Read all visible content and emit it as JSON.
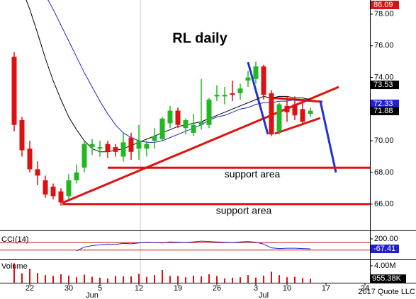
{
  "chart_data": {
    "type": "candlestick",
    "title": "RL daily",
    "categories": [
      null,
      null,
      "22",
      null,
      null,
      null,
      null,
      "30",
      null,
      null,
      null,
      "5",
      null,
      null,
      null,
      null,
      "12",
      null,
      null,
      null,
      null,
      "19",
      null,
      null,
      null,
      null,
      "26",
      null,
      null,
      null,
      null,
      "3",
      null,
      null,
      null,
      "10",
      null,
      null,
      null,
      null,
      "17",
      null,
      null,
      null,
      null,
      "24"
    ],
    "month_labels": [
      {
        "label": "Jun",
        "at": 10
      },
      {
        "label": "Jul",
        "at": 32
      }
    ],
    "open": [
      75.3,
      71.3,
      69.5,
      68.2,
      67.5,
      67.1,
      66.8,
      66.5,
      67.5,
      68.3,
      69.6,
      69.5,
      69.8,
      69.6,
      69.0,
      70.2,
      69.5,
      69.5,
      70.0,
      70.1,
      71.1,
      71.9,
      70.8,
      70.5,
      71.0,
      71.0,
      72.8,
      72.8,
      73.0,
      73.0,
      73.8,
      73.9,
      74.7,
      73.0,
      70.6,
      72.2,
      72.3,
      72.0,
      71.7,
      null,
      null,
      null,
      null,
      null,
      null,
      null
    ],
    "high": [
      75.6,
      71.5,
      70.0,
      68.7,
      67.8,
      67.3,
      67.0,
      67.9,
      68.5,
      70.0,
      70.1,
      70.0,
      70.0,
      69.8,
      70.5,
      70.5,
      71.0,
      70.0,
      70.8,
      71.5,
      72.2,
      72.1,
      71.4,
      71.7,
      73.9,
      72.7,
      73.5,
      73.4,
      73.8,
      73.6,
      74.4,
      75.0,
      74.8,
      73.2,
      72.4,
      72.8,
      72.8,
      72.6,
      72.1,
      null,
      null,
      null,
      null,
      null,
      null,
      null
    ],
    "low": [
      70.6,
      69.0,
      68.0,
      67.2,
      66.4,
      66.3,
      65.9,
      66.3,
      67.3,
      68.0,
      69.1,
      69.0,
      68.9,
      69.0,
      68.7,
      68.8,
      68.8,
      69.0,
      69.5,
      70.0,
      70.8,
      70.8,
      70.4,
      70.3,
      70.7,
      70.8,
      72.5,
      72.3,
      72.5,
      72.6,
      73.4,
      73.6,
      72.6,
      70.3,
      70.4,
      71.2,
      71.3,
      71.1,
      71.5,
      null,
      null,
      null,
      null,
      null,
      null,
      null
    ],
    "close": [
      71.0,
      69.4,
      68.2,
      67.8,
      66.6,
      66.5,
      66.1,
      67.5,
      68.0,
      69.8,
      69.8,
      69.6,
      69.3,
      69.3,
      69.9,
      69.3,
      70.0,
      69.8,
      70.3,
      71.4,
      71.9,
      71.0,
      71.3,
      71.0,
      71.2,
      72.6,
      72.9,
      72.9,
      72.9,
      73.3,
      74.0,
      74.7,
      72.9,
      70.4,
      72.3,
      71.8,
      71.6,
      71.2,
      71.9,
      null,
      null,
      null,
      null,
      null,
      null,
      null
    ],
    "up_color": "#22b822",
    "down_color": "#dd1111",
    "overlays": [
      {
        "color": "#000000",
        "values": [
          81.0,
          79.6,
          78.3,
          76.8,
          75.2,
          73.8,
          72.6,
          71.5,
          70.7,
          70.0,
          69.5,
          69.3,
          69.3,
          69.4,
          69.5,
          69.7,
          69.9,
          70.1,
          70.3,
          70.5,
          70.7,
          70.9,
          71.0,
          71.1,
          71.2,
          71.4,
          71.6,
          71.8,
          72.0,
          72.2,
          72.4,
          72.6,
          72.8,
          72.7,
          72.8,
          72.8,
          72.7,
          72.7,
          72.6,
          null,
          null,
          null,
          null,
          null,
          null,
          null
        ]
      },
      {
        "color": "#2222cc",
        "values": [
          83.0,
          82.0,
          81.0,
          80.0,
          79.2,
          78.3,
          77.3,
          76.3,
          75.3,
          74.3,
          73.4,
          72.5,
          71.7,
          71.0,
          70.5,
          70.2,
          70.0,
          69.9,
          69.9,
          70.0,
          70.2,
          70.4,
          70.6,
          70.8,
          71.0,
          71.3,
          71.5,
          71.6,
          71.8,
          72.0,
          72.1,
          72.3,
          72.4,
          72.4,
          72.5,
          72.5,
          72.6,
          72.6,
          72.6,
          null,
          null,
          null,
          null,
          null,
          null,
          null
        ]
      }
    ],
    "ylim": [
      64.38,
      78.89
    ],
    "yticks": [
      {
        "value": 66,
        "label": "66.00"
      },
      {
        "value": 68,
        "label": "68.00"
      },
      {
        "value": 70,
        "label": "70.00"
      },
      {
        "value": 74,
        "label": "74.00"
      },
      {
        "value": 76,
        "label": "76.00"
      },
      {
        "value": 78,
        "label": "78.00"
      }
    ],
    "price_labels": [
      {
        "value": 86.09,
        "color": "#dd1111"
      },
      {
        "value": 73.53,
        "color": "#000000"
      },
      {
        "value": 72.33,
        "color": "#2222cc"
      },
      {
        "value": 71.88,
        "color": "#000000"
      }
    ],
    "annotations": [
      {
        "text": "support area",
        "y": 68.3
      },
      {
        "text": "support area",
        "y": 66.0
      }
    ],
    "cci": {
      "label": "CCI(14)",
      "color": "#2222cc",
      "values": [
        null,
        null,
        null,
        null,
        null,
        null,
        null,
        null,
        -120,
        -20,
        20,
        40,
        60,
        50,
        80,
        70,
        90,
        110,
        100,
        90,
        120,
        110,
        100,
        120,
        140,
        130,
        120,
        110,
        100,
        120,
        130,
        110,
        60,
        -40,
        -60,
        -50,
        -50,
        -60,
        -67.41,
        null,
        null,
        null,
        null,
        null,
        null,
        null
      ],
      "ylim": [
        -334,
        391
      ],
      "yticks": [
        {
          "value": 200,
          "label": "200.00"
        }
      ],
      "levels": [
        100,
        -100
      ],
      "current": -67.41
    },
    "volume": {
      "label": "Volume",
      "color": "#dd1111",
      "values": [
        4600000,
        2200000,
        3300000,
        2300000,
        1800000,
        1600000,
        2000000,
        1700000,
        1300000,
        1900000,
        1400000,
        1200000,
        1000000,
        1600000,
        1500000,
        1500000,
        2100000,
        1400000,
        1800000,
        3000000,
        1600000,
        1600000,
        1300000,
        1700000,
        1500000,
        2000000,
        1600000,
        1000000,
        1200000,
        1300000,
        1800000,
        1200000,
        1700000,
        2600000,
        1800000,
        1300000,
        1400000,
        1100000,
        955380,
        null,
        null,
        null,
        null,
        null,
        null,
        null
      ],
      "ylim": [
        0,
        5000000
      ],
      "yticks": [
        {
          "value": 4000000,
          "label": "4.00M"
        }
      ],
      "current": {
        "value": 955380,
        "label": "955.38K"
      }
    },
    "copyright": "2017 Quote LLC"
  }
}
